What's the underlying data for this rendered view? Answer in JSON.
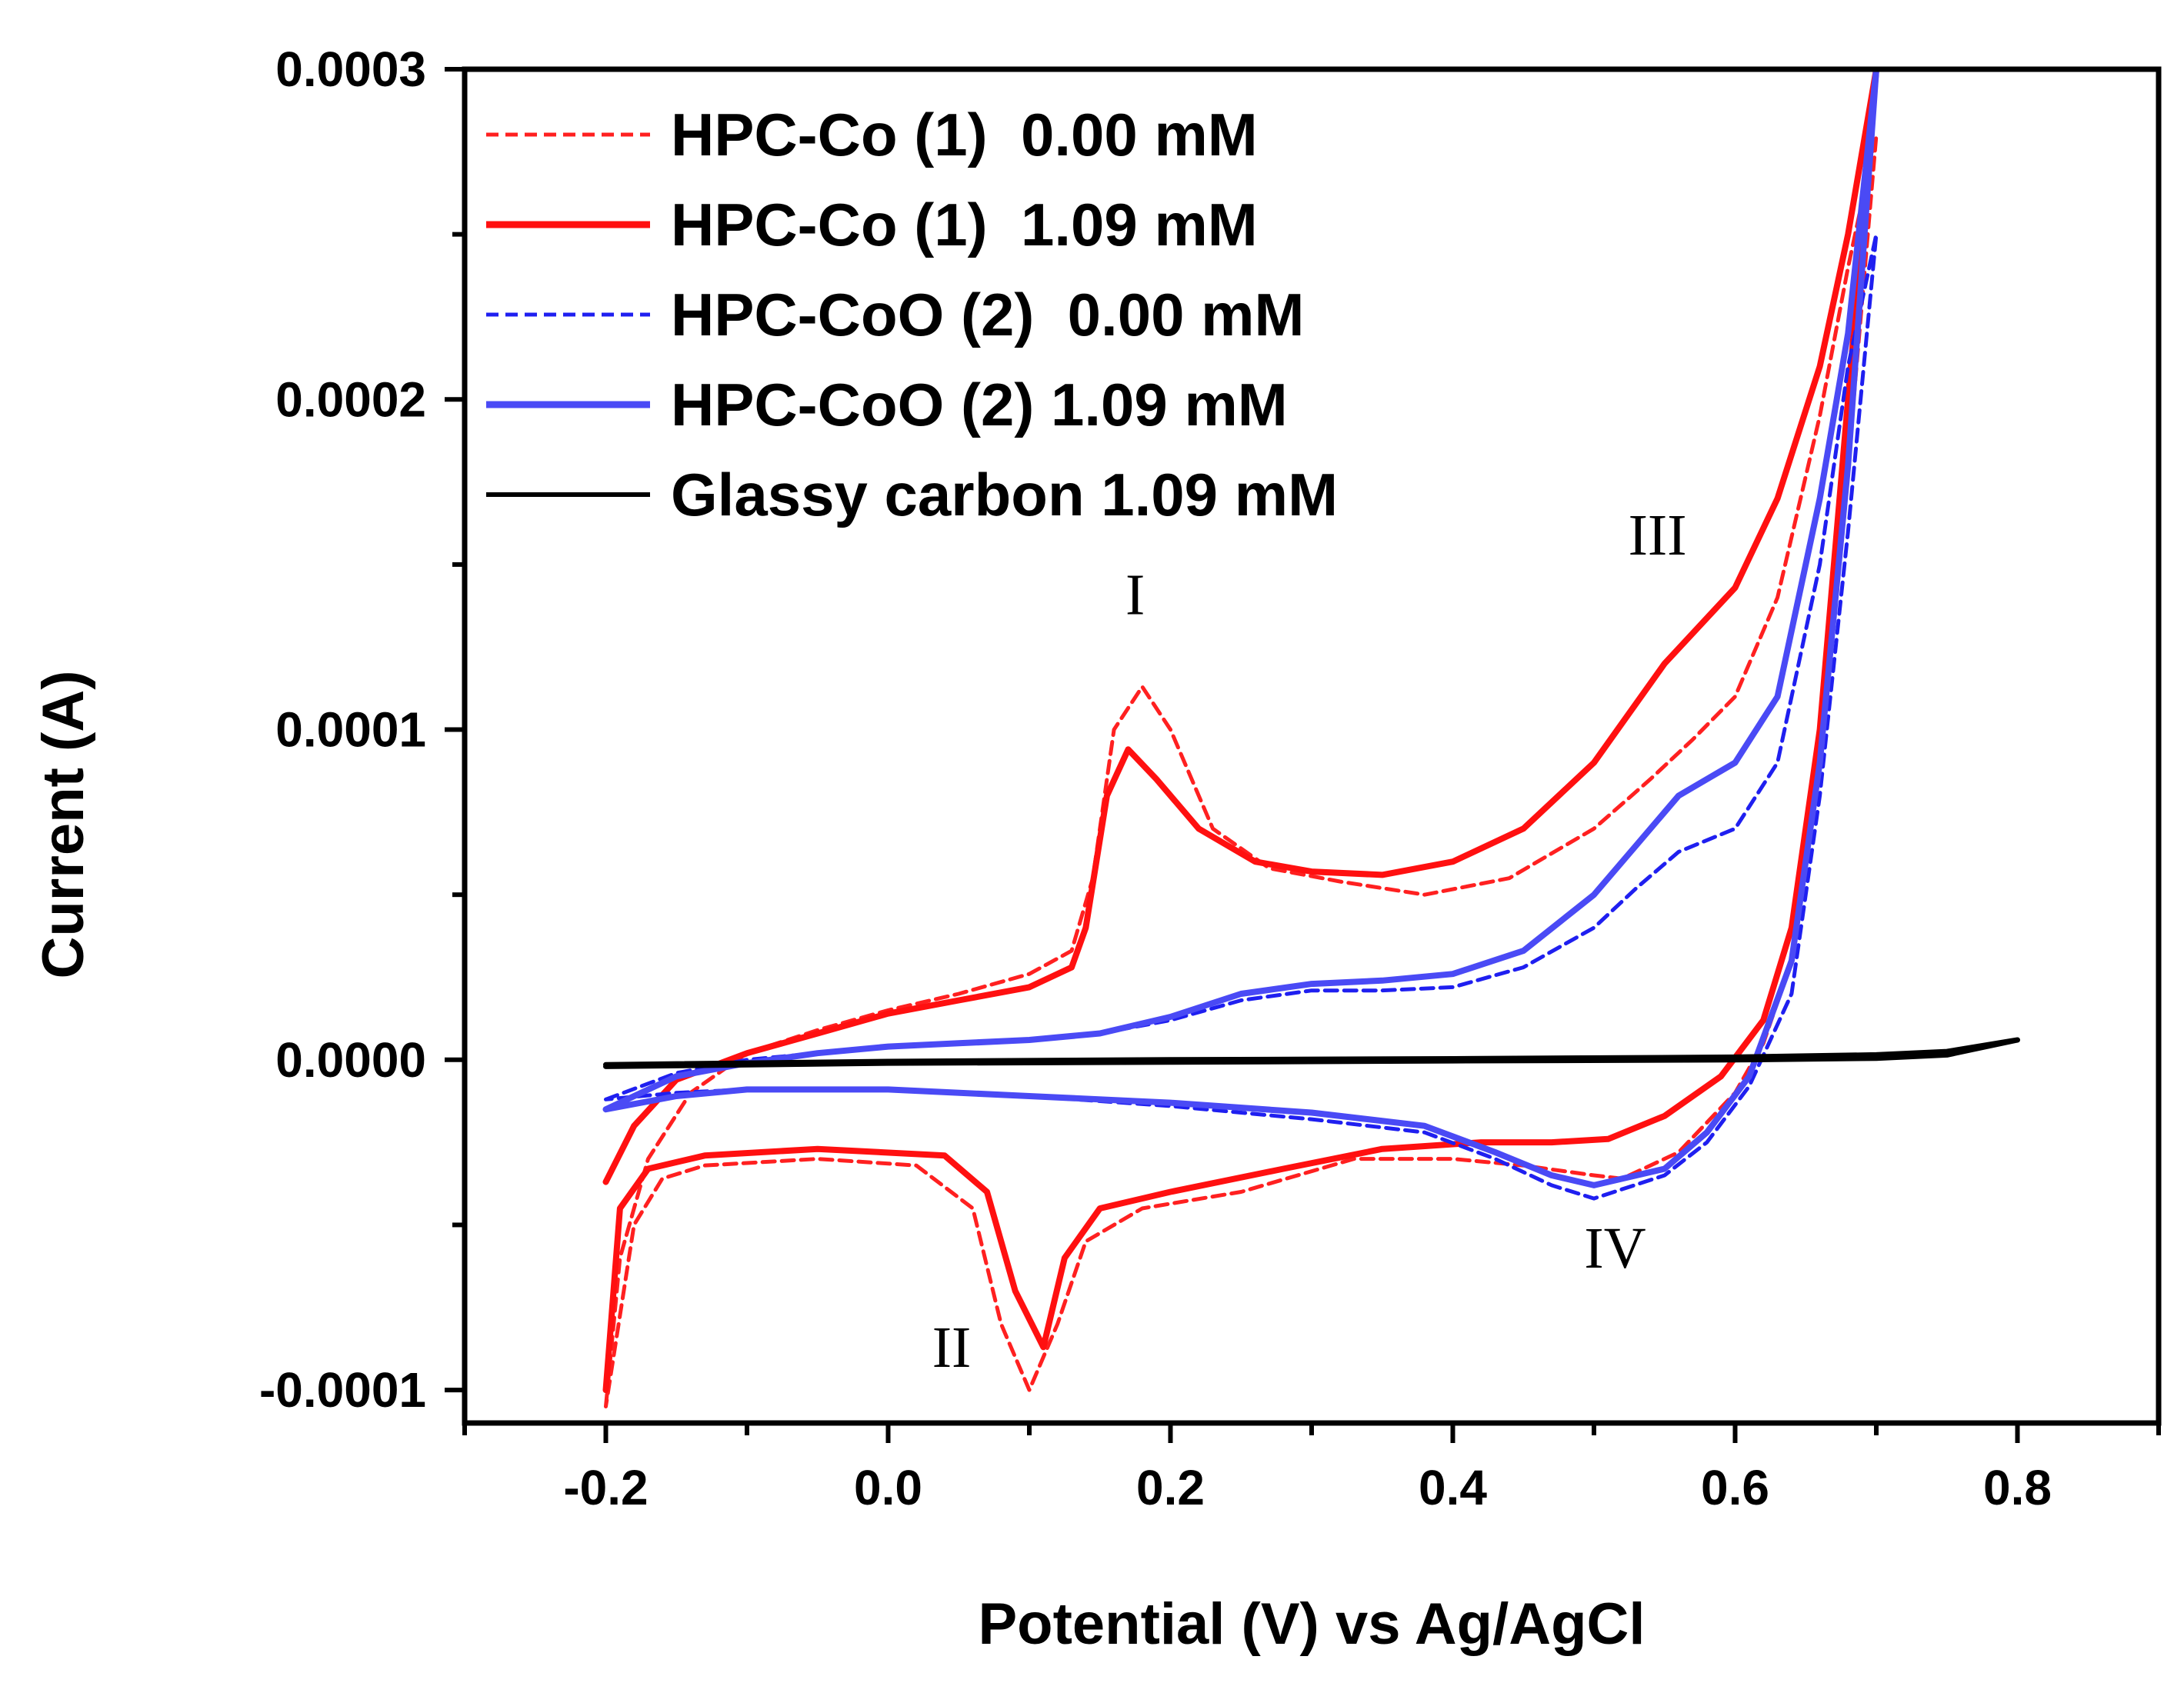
{
  "chart_data": {
    "type": "line",
    "title": "",
    "xlabel": "Potential (V) vs Ag/AgCl",
    "ylabel": "Current (A)",
    "xlim": [
      -0.3,
      0.9
    ],
    "ylim": [
      -0.00011,
      0.0003
    ],
    "x_ticks": [
      -0.2,
      0.0,
      0.2,
      0.4,
      0.6,
      0.8
    ],
    "x_tick_labels": [
      "-0.2",
      "0.0",
      "0.2",
      "0.4",
      "0.6",
      "0.8"
    ],
    "y_ticks": [
      -0.0001,
      0.0,
      0.0001,
      0.0002,
      0.0003
    ],
    "y_tick_labels": [
      "-0.0001",
      "0.0000",
      "0.0001",
      "0.0002",
      "0.0003"
    ],
    "legend_position": "top-left",
    "annotations": [
      {
        "text": "I",
        "x": 0.175,
        "y": 0.000135
      },
      {
        "text": "II",
        "x": 0.045,
        "y": -9.3e-05
      },
      {
        "text": "III",
        "x": 0.545,
        "y": 0.000153
      },
      {
        "text": "IV",
        "x": 0.515,
        "y": -6.3e-05
      }
    ],
    "series": [
      {
        "name": "HPC-Co (1)  0.00 mM",
        "color": "#ff2020",
        "dash": "dashed",
        "forward": [
          [
            -0.2,
            -0.000105
          ],
          [
            -0.19,
            -6e-05
          ],
          [
            -0.17,
            -3e-05
          ],
          [
            -0.14,
            -1e-05
          ],
          [
            -0.1,
            2e-06
          ],
          [
            -0.05,
            9e-06
          ],
          [
            0.0,
            1.5e-05
          ],
          [
            0.05,
            2e-05
          ],
          [
            0.1,
            2.6e-05
          ],
          [
            0.13,
            3.3e-05
          ],
          [
            0.145,
            5.5e-05
          ],
          [
            0.16,
            0.0001
          ],
          [
            0.18,
            0.000113
          ],
          [
            0.2,
            0.0001
          ],
          [
            0.23,
            7e-05
          ],
          [
            0.27,
            5.8e-05
          ],
          [
            0.32,
            5.4e-05
          ],
          [
            0.38,
            5e-05
          ],
          [
            0.44,
            5.5e-05
          ],
          [
            0.5,
            7e-05
          ],
          [
            0.54,
            8.5e-05
          ],
          [
            0.57,
            9.7e-05
          ],
          [
            0.6,
            0.00011
          ],
          [
            0.63,
            0.00014
          ],
          [
            0.66,
            0.000195
          ],
          [
            0.68,
            0.00024
          ],
          [
            0.7,
            0.00028
          ]
        ],
        "reverse": [
          [
            0.7,
            0.00028
          ],
          [
            0.68,
            0.00018
          ],
          [
            0.66,
            9e-05
          ],
          [
            0.64,
            3e-05
          ],
          [
            0.62,
            5e-06
          ],
          [
            0.6,
            -1e-05
          ],
          [
            0.56,
            -2.8e-05
          ],
          [
            0.52,
            -3.6e-05
          ],
          [
            0.5,
            -3.5e-05
          ],
          [
            0.45,
            -3.2e-05
          ],
          [
            0.4,
            -3e-05
          ],
          [
            0.33,
            -3e-05
          ],
          [
            0.25,
            -4e-05
          ],
          [
            0.18,
            -4.5e-05
          ],
          [
            0.14,
            -5.5e-05
          ],
          [
            0.12,
            -8e-05
          ],
          [
            0.1,
            -0.0001
          ],
          [
            0.08,
            -8e-05
          ],
          [
            0.06,
            -4.5e-05
          ],
          [
            0.02,
            -3.2e-05
          ],
          [
            -0.05,
            -3e-05
          ],
          [
            -0.13,
            -3.2e-05
          ],
          [
            -0.16,
            -3.6e-05
          ],
          [
            -0.18,
            -5e-05
          ],
          [
            -0.2,
            -0.000105
          ]
        ]
      },
      {
        "name": "HPC-Co (1)  1.09 mM",
        "color": "#ff1010",
        "dash": "solid",
        "forward": [
          [
            -0.2,
            -3.7e-05
          ],
          [
            -0.18,
            -2e-05
          ],
          [
            -0.15,
            -6e-06
          ],
          [
            -0.1,
            2e-06
          ],
          [
            -0.05,
            8e-06
          ],
          [
            0.0,
            1.4e-05
          ],
          [
            0.05,
            1.8e-05
          ],
          [
            0.1,
            2.2e-05
          ],
          [
            0.13,
            2.8e-05
          ],
          [
            0.14,
            4e-05
          ],
          [
            0.155,
            8e-05
          ],
          [
            0.17,
            9.4e-05
          ],
          [
            0.19,
            8.5e-05
          ],
          [
            0.22,
            7e-05
          ],
          [
            0.26,
            6e-05
          ],
          [
            0.3,
            5.7e-05
          ],
          [
            0.35,
            5.6e-05
          ],
          [
            0.4,
            6e-05
          ],
          [
            0.45,
            7e-05
          ],
          [
            0.5,
            9e-05
          ],
          [
            0.55,
            0.00012
          ],
          [
            0.6,
            0.000143
          ],
          [
            0.63,
            0.00017
          ],
          [
            0.66,
            0.00021
          ],
          [
            0.68,
            0.00025
          ],
          [
            0.7,
            0.0003
          ]
        ],
        "reverse": [
          [
            0.7,
            0.0003
          ],
          [
            0.68,
            0.0002
          ],
          [
            0.66,
            0.0001
          ],
          [
            0.64,
            4e-05
          ],
          [
            0.62,
            1.2e-05
          ],
          [
            0.59,
            -5e-06
          ],
          [
            0.55,
            -1.7e-05
          ],
          [
            0.51,
            -2.4e-05
          ],
          [
            0.47,
            -2.5e-05
          ],
          [
            0.42,
            -2.5e-05
          ],
          [
            0.35,
            -2.7e-05
          ],
          [
            0.28,
            -3.3e-05
          ],
          [
            0.2,
            -4e-05
          ],
          [
            0.15,
            -4.5e-05
          ],
          [
            0.125,
            -6e-05
          ],
          [
            0.11,
            -8.7e-05
          ],
          [
            0.09,
            -7e-05
          ],
          [
            0.07,
            -4e-05
          ],
          [
            0.04,
            -2.9e-05
          ],
          [
            -0.05,
            -2.7e-05
          ],
          [
            -0.13,
            -2.9e-05
          ],
          [
            -0.17,
            -3.3e-05
          ],
          [
            -0.19,
            -4.5e-05
          ],
          [
            -0.2,
            -0.0001
          ]
        ]
      },
      {
        "name": "HPC-CoO (2)  0.00 mM",
        "color": "#1f1ff0",
        "dash": "dashed",
        "forward": [
          [
            -0.2,
            -1.2e-05
          ],
          [
            -0.15,
            -4e-06
          ],
          [
            -0.1,
            0.0
          ],
          [
            -0.05,
            2e-06
          ],
          [
            0.0,
            4e-06
          ],
          [
            0.05,
            5e-06
          ],
          [
            0.1,
            6e-06
          ],
          [
            0.15,
            8e-06
          ],
          [
            0.2,
            1.2e-05
          ],
          [
            0.25,
            1.8e-05
          ],
          [
            0.3,
            2.1e-05
          ],
          [
            0.35,
            2.1e-05
          ],
          [
            0.4,
            2.2e-05
          ],
          [
            0.45,
            2.8e-05
          ],
          [
            0.5,
            4e-05
          ],
          [
            0.53,
            5.2e-05
          ],
          [
            0.56,
            6.3e-05
          ],
          [
            0.6,
            7e-05
          ],
          [
            0.63,
            9e-05
          ],
          [
            0.66,
            0.00015
          ],
          [
            0.68,
            0.00021
          ],
          [
            0.7,
            0.00025
          ]
        ],
        "reverse": [
          [
            0.7,
            0.00025
          ],
          [
            0.68,
            0.00016
          ],
          [
            0.66,
            8e-05
          ],
          [
            0.64,
            2e-05
          ],
          [
            0.61,
            -8e-06
          ],
          [
            0.58,
            -2.5e-05
          ],
          [
            0.55,
            -3.5e-05
          ],
          [
            0.5,
            -4.2e-05
          ],
          [
            0.47,
            -3.8e-05
          ],
          [
            0.43,
            -3e-05
          ],
          [
            0.38,
            -2.2e-05
          ],
          [
            0.3,
            -1.8e-05
          ],
          [
            0.2,
            -1.4e-05
          ],
          [
            0.1,
            -1.1e-05
          ],
          [
            0.0,
            -9e-06
          ],
          [
            -0.1,
            -9e-06
          ],
          [
            -0.15,
            -1e-05
          ],
          [
            -0.2,
            -1.2e-05
          ]
        ]
      },
      {
        "name": "HPC-CoO (2) 1.09 mM",
        "color": "#4a4af5",
        "dash": "solid",
        "forward": [
          [
            -0.2,
            -1.5e-05
          ],
          [
            -0.15,
            -5e-06
          ],
          [
            -0.1,
            -1e-06
          ],
          [
            -0.05,
            2e-06
          ],
          [
            0.0,
            4e-06
          ],
          [
            0.05,
            5e-06
          ],
          [
            0.1,
            6e-06
          ],
          [
            0.15,
            8e-06
          ],
          [
            0.2,
            1.3e-05
          ],
          [
            0.25,
            2e-05
          ],
          [
            0.3,
            2.3e-05
          ],
          [
            0.35,
            2.4e-05
          ],
          [
            0.4,
            2.6e-05
          ],
          [
            0.45,
            3.3e-05
          ],
          [
            0.5,
            5e-05
          ],
          [
            0.53,
            6.5e-05
          ],
          [
            0.56,
            8e-05
          ],
          [
            0.6,
            9e-05
          ],
          [
            0.63,
            0.00011
          ],
          [
            0.66,
            0.00017
          ],
          [
            0.68,
            0.00022
          ],
          [
            0.7,
            0.0003
          ]
        ],
        "reverse": [
          [
            0.7,
            0.0003
          ],
          [
            0.68,
            0.00018
          ],
          [
            0.66,
            9e-05
          ],
          [
            0.64,
            3e-05
          ],
          [
            0.61,
            -5e-06
          ],
          [
            0.58,
            -2.2e-05
          ],
          [
            0.55,
            -3.3e-05
          ],
          [
            0.5,
            -3.8e-05
          ],
          [
            0.47,
            -3.5e-05
          ],
          [
            0.43,
            -2.8e-05
          ],
          [
            0.38,
            -2e-05
          ],
          [
            0.3,
            -1.6e-05
          ],
          [
            0.2,
            -1.3e-05
          ],
          [
            0.1,
            -1.1e-05
          ],
          [
            0.0,
            -9e-06
          ],
          [
            -0.1,
            -9e-06
          ],
          [
            -0.15,
            -1.1e-05
          ],
          [
            -0.2,
            -1.5e-05
          ]
        ]
      },
      {
        "name": "Glassy carbon 1.09 mM",
        "color": "#000000",
        "dash": "solid",
        "forward": [
          [
            -0.2,
            -1.5e-06
          ],
          [
            0.0,
            -5e-07
          ],
          [
            0.2,
            0.0
          ],
          [
            0.4,
            3e-07
          ],
          [
            0.6,
            8e-07
          ],
          [
            0.7,
            1.5e-06
          ],
          [
            0.75,
            2.5e-06
          ],
          [
            0.8,
            6e-06
          ]
        ],
        "reverse": [
          [
            0.8,
            6e-06
          ],
          [
            0.75,
            1.5e-06
          ],
          [
            0.7,
            5e-07
          ],
          [
            0.6,
            0.0
          ],
          [
            0.4,
            -3e-07
          ],
          [
            0.2,
            -7e-07
          ],
          [
            0.0,
            -1e-06
          ],
          [
            -0.2,
            -2e-06
          ]
        ]
      }
    ]
  }
}
